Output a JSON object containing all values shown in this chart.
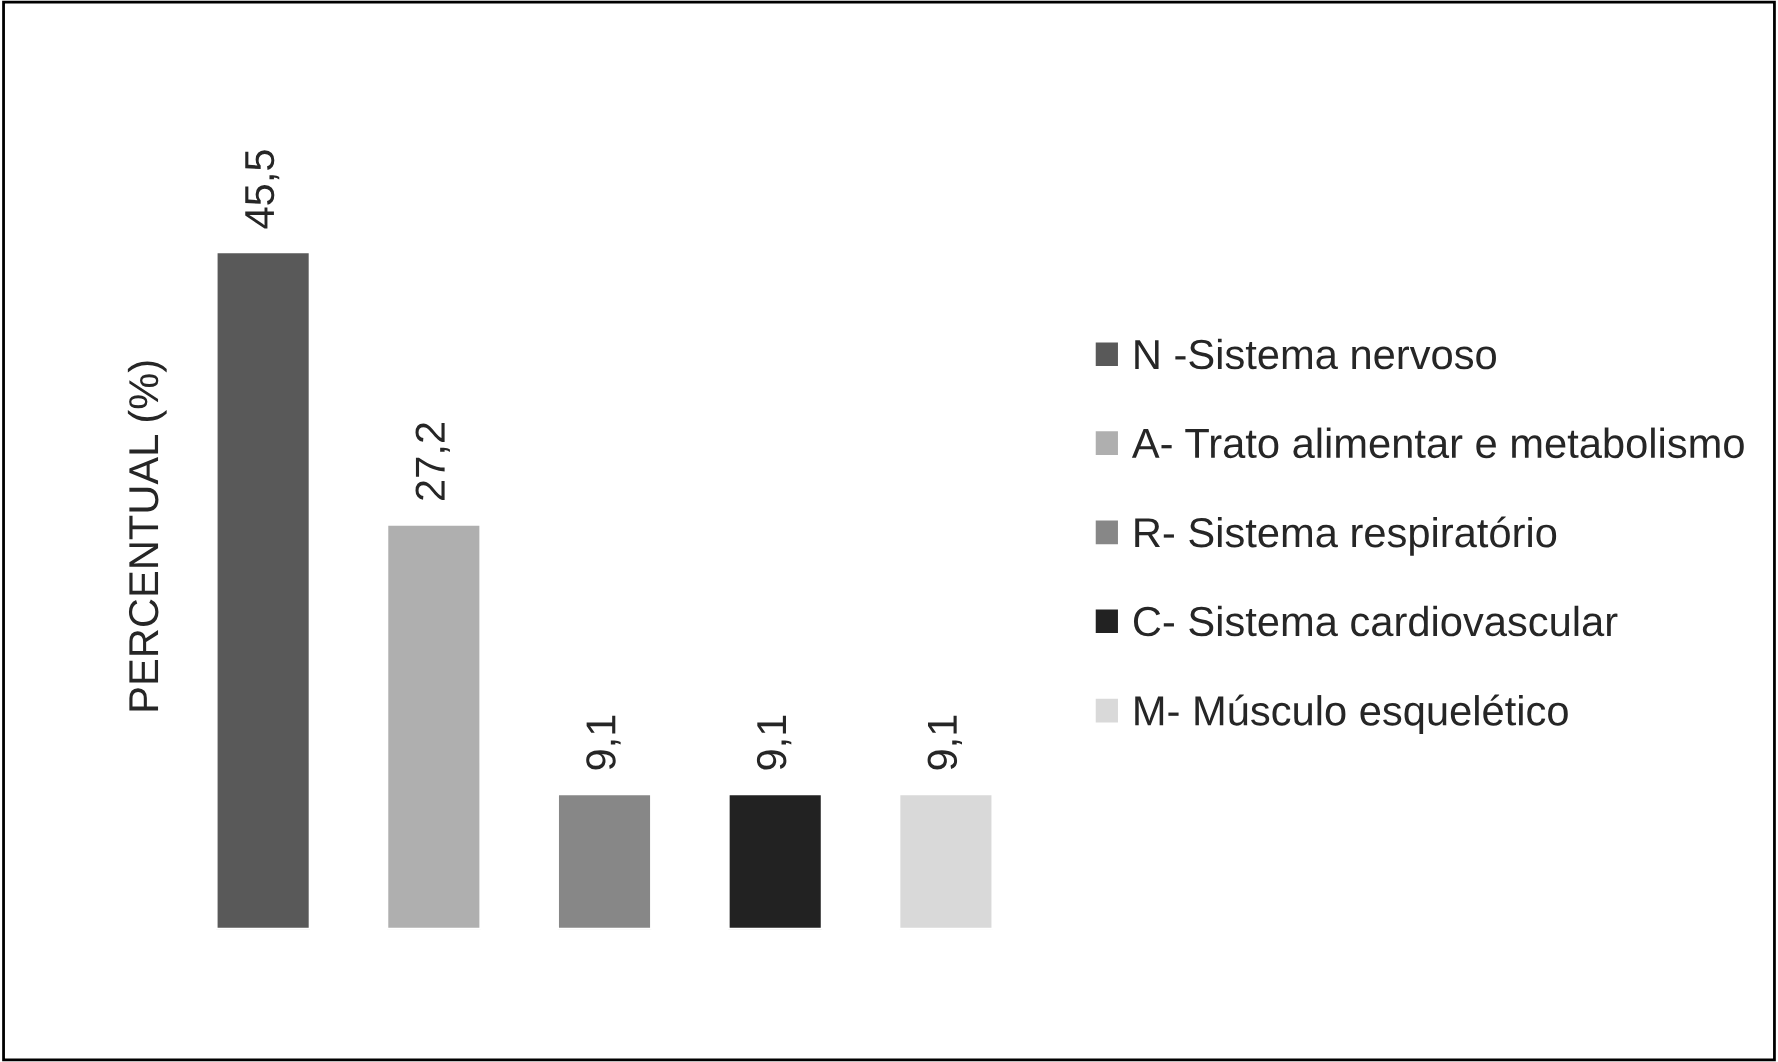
{
  "chart_data": {
    "type": "bar",
    "ylabel": "PERCENTUAL (%)",
    "categories": [
      null,
      null,
      null,
      null,
      null
    ],
    "stacked": true,
    "series": [
      {
        "name": "N -Sistema nervoso",
        "color": "#595959",
        "values": [
          45.5,
          null,
          null,
          null,
          null
        ],
        "value_labels": [
          "45,5",
          null,
          null,
          null,
          null
        ]
      },
      {
        "name": "A- Trato alimentar e metabolismo",
        "color": "#afafaf",
        "values": [
          null,
          27.2,
          null,
          null,
          null
        ],
        "value_labels": [
          null,
          "27,2",
          null,
          null,
          null
        ]
      },
      {
        "name": "R- Sistema respiratório",
        "color": "#878787",
        "values": [
          null,
          null,
          9.1,
          null,
          null
        ],
        "value_labels": [
          null,
          null,
          "9,1",
          null,
          null
        ]
      },
      {
        "name": "C- Sistema cardiovascular",
        "color": "#222222",
        "values": [
          null,
          null,
          null,
          9.1,
          null
        ],
        "value_labels": [
          null,
          null,
          null,
          "9,1",
          null
        ]
      },
      {
        "name": "M- Músculo esquelético",
        "color": "#d9d9d9",
        "values": [
          null,
          null,
          null,
          null,
          9.1
        ],
        "value_labels": [
          null,
          null,
          null,
          null,
          "9,1"
        ]
      }
    ],
    "legend": "right"
  }
}
